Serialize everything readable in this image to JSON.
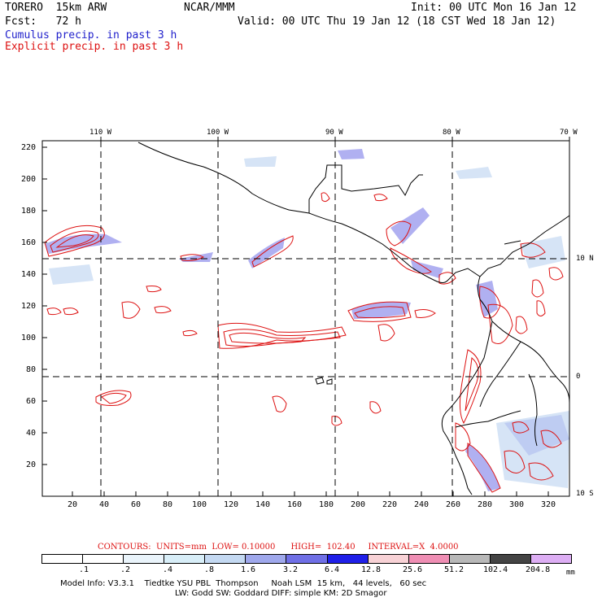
{
  "header": {
    "model": "TORERO  15km ARW",
    "org": "NCAR/MMM",
    "init": "Init: 00 UTC Mon 16 Jan 12",
    "fcst": "Fcst:   72 h",
    "valid": "Valid: 00 UTC Thu 19 Jan 12 (18 CST Wed 18 Jan 12)",
    "cumulus": "Cumulus precip. in past 3 h",
    "explicit": "Explicit precip. in past 3 h"
  },
  "map": {
    "lon_labels": [
      "110 W",
      "100 W",
      "90 W",
      "80 W",
      "70 W"
    ],
    "lat_labels": [
      "10 N",
      "0",
      "10 S"
    ],
    "y_ticks": [
      "220",
      "200",
      "180",
      "160",
      "140",
      "120",
      "100",
      "80",
      "60",
      "40",
      "20"
    ],
    "x_ticks": [
      "20",
      "40",
      "60",
      "80",
      "100",
      "120",
      "140",
      "160",
      "180",
      "200",
      "220",
      "240",
      "260",
      "280",
      "300",
      "320"
    ]
  },
  "contours_info": {
    "label": "CONTOURS:  UNITS=mm  LOW= 0.10000      HIGH=  102.40     INTERVAL=X  4.0000"
  },
  "legend": {
    "labels": [
      ".1",
      ".2",
      ".4",
      ".8",
      "1.6",
      "3.2",
      "6.4",
      "12.8",
      "25.6",
      "51.2",
      "102.4",
      "204.8"
    ],
    "unit": "mm",
    "colors": [
      "#ffffff",
      "#ffffff",
      "#eaf4fb",
      "#d8eef8",
      "#c4d9f2",
      "#9fa8ec",
      "#6f6fe6",
      "#1f1fe8",
      "#f8d2d6",
      "#ef8eb4",
      "#b8b8b8",
      "#444444",
      "#ddaef4"
    ]
  },
  "footer": {
    "line1": "Model Info: V3.3.1    Tiedtke YSU PBL  Thompson     Noah LSM  15 km,   44 levels,   60 sec",
    "line2": "LW: Godd SW: Goddard DIFF: simple KM: 2D Smagor"
  }
}
